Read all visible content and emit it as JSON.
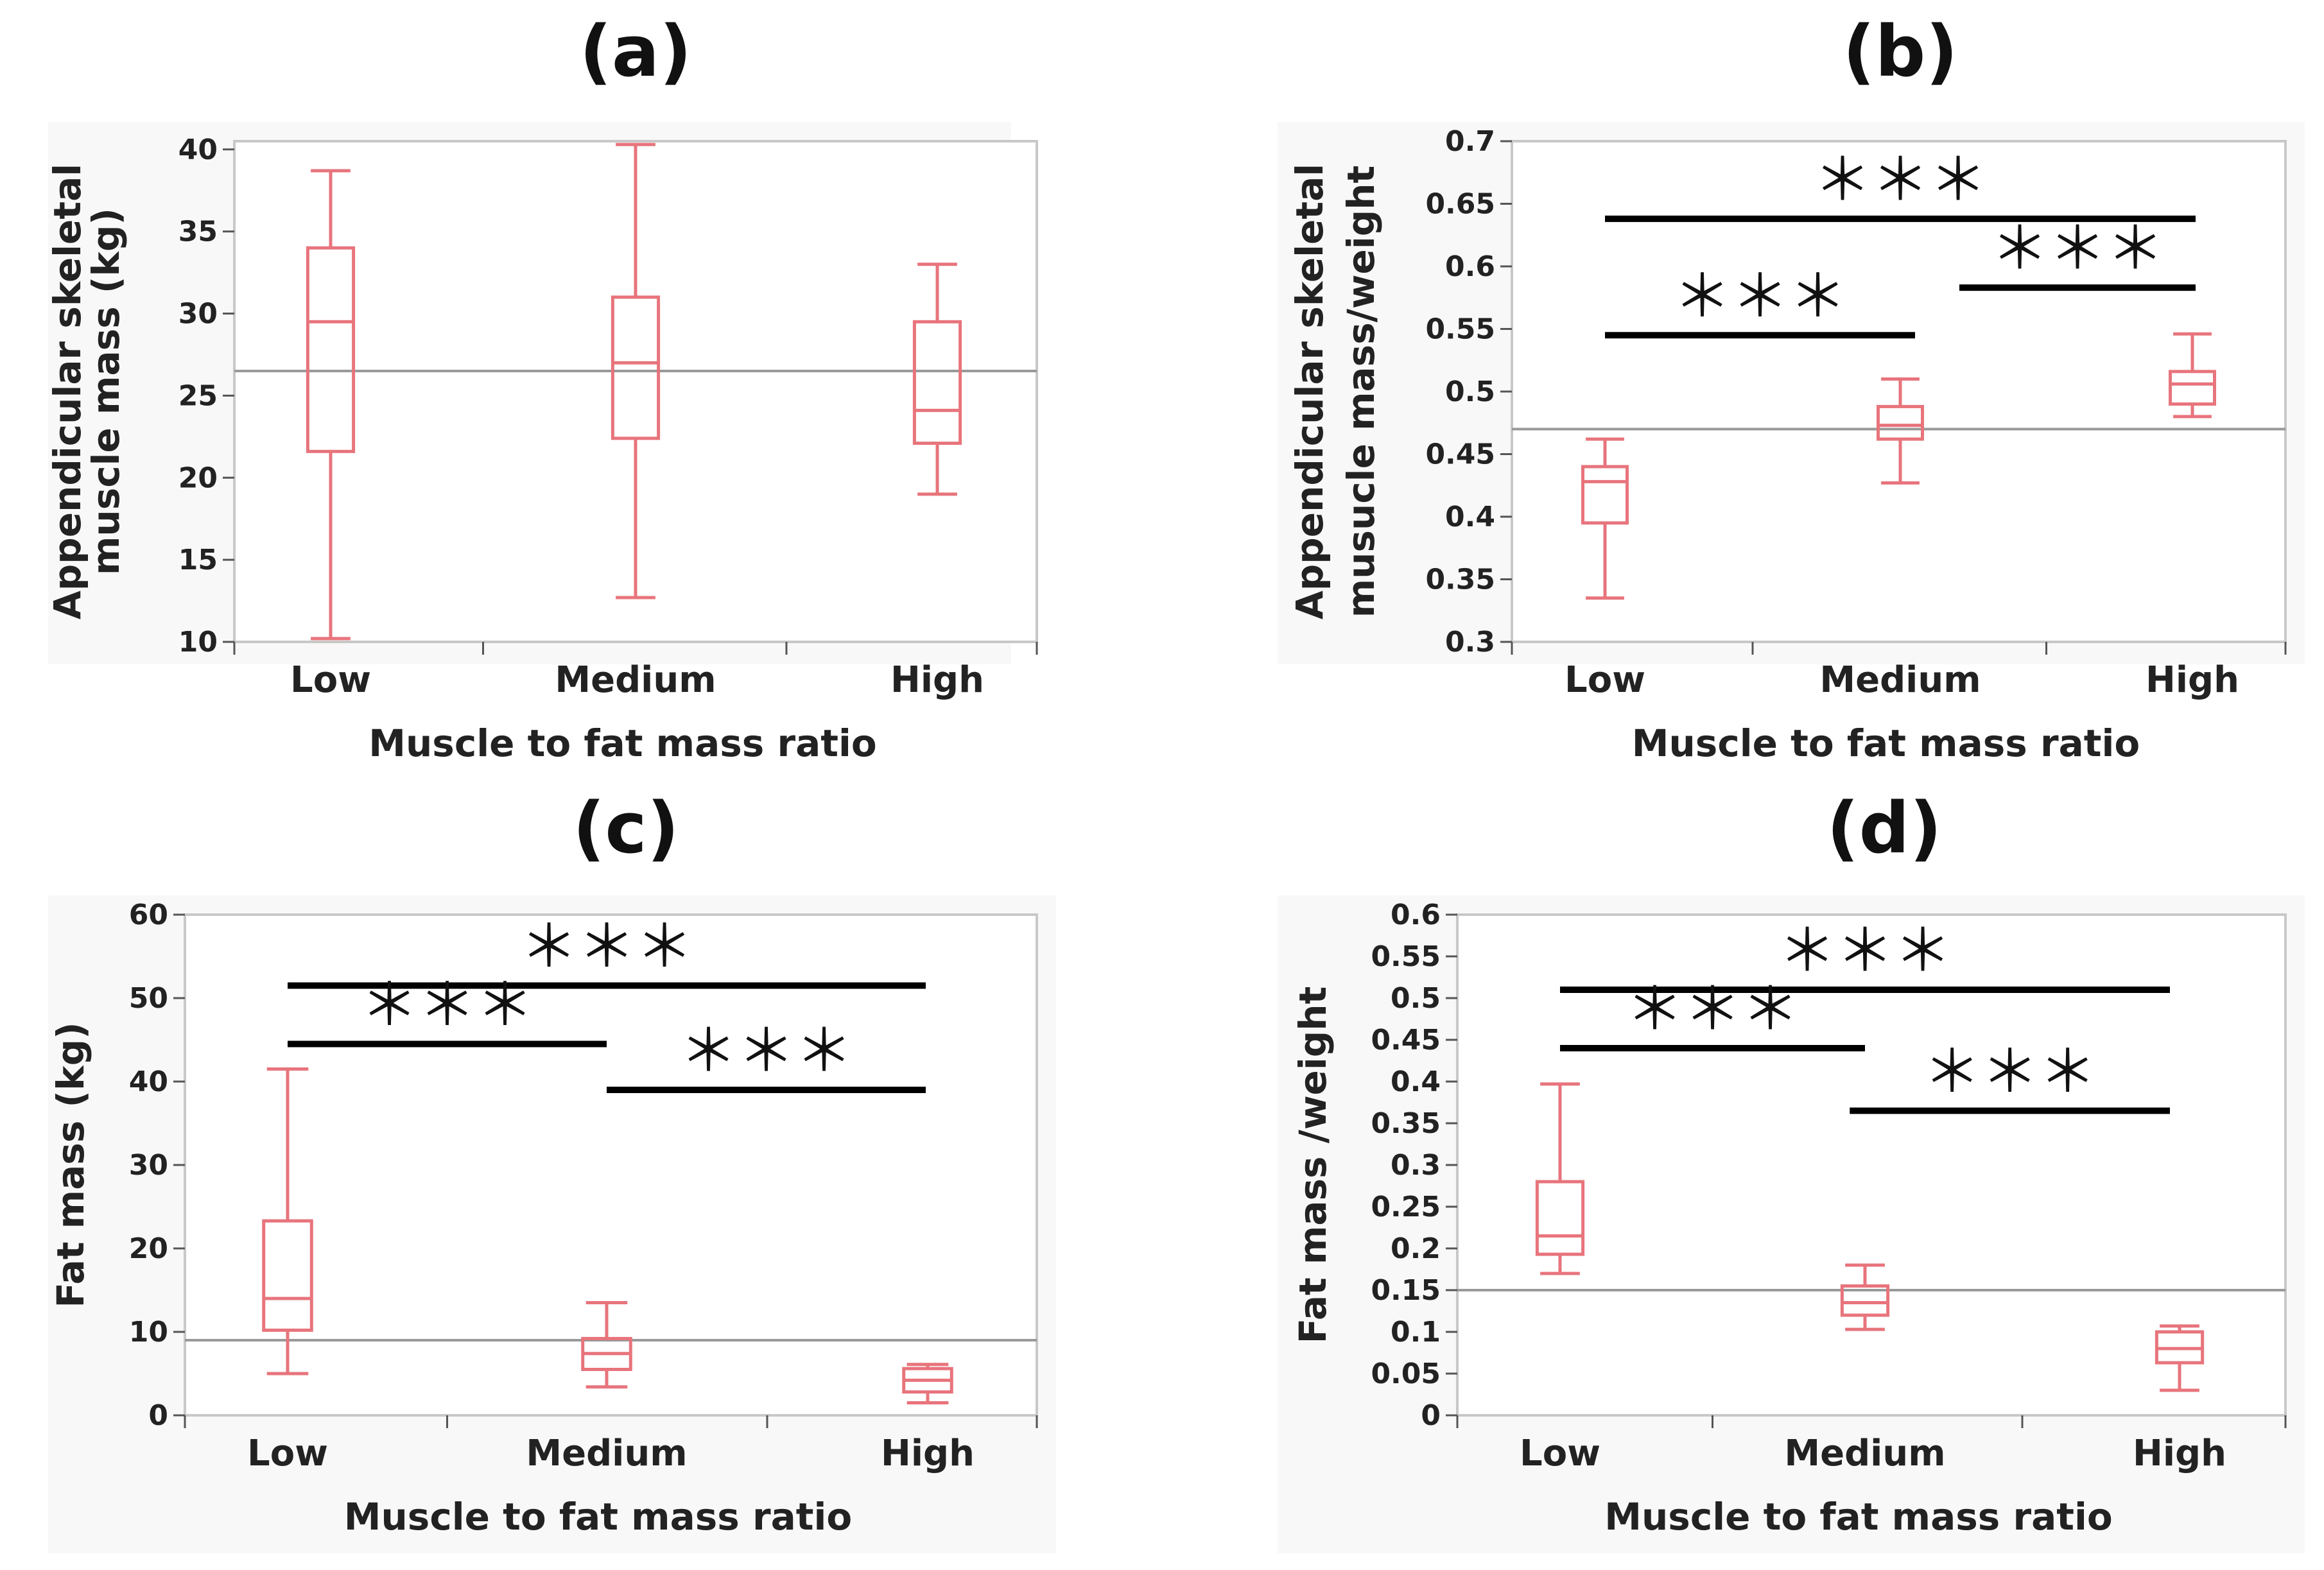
{
  "chart_data": [
    {
      "type": "box",
      "panel_label": "(a)",
      "xlabel": "Muscle to fat mass ratio",
      "ylabel_lines": [
        "Appendicular skeletal",
        "muscle mass (kg)"
      ],
      "categories": [
        "Low",
        "Medium",
        "High"
      ],
      "ylim": [
        10,
        40.5
      ],
      "yticks": [
        10,
        15,
        20,
        25,
        30,
        35,
        40
      ],
      "tick_labels": [
        "10",
        "15",
        "20",
        "25",
        "30",
        "35",
        "40"
      ],
      "reference_line": 26.5,
      "boxes": [
        {
          "category": "Low",
          "min": 10.2,
          "q1": 21.6,
          "median": 29.5,
          "q3": 34.0,
          "max": 38.7
        },
        {
          "category": "Medium",
          "min": 12.7,
          "q1": 22.4,
          "median": 27.0,
          "q3": 31.0,
          "max": 40.3
        },
        {
          "category": "High",
          "min": 19.0,
          "q1": 22.1,
          "median": 24.1,
          "q3": 29.5,
          "max": 33.0
        }
      ],
      "significance": []
    },
    {
      "type": "box",
      "panel_label": "(b)",
      "xlabel": "Muscle to fat mass ratio",
      "ylabel_lines": [
        "Appendicular skeletal",
        "musucle mass/weight"
      ],
      "categories": [
        "Low",
        "Medium",
        "High"
      ],
      "ylim": [
        0.3,
        0.7
      ],
      "yticks": [
        0.3,
        0.35,
        0.4,
        0.45,
        0.5,
        0.55,
        0.6,
        0.65,
        0.7
      ],
      "tick_labels": [
        "0.3",
        "0.35",
        "0.4",
        "0.45",
        "0.5",
        "0.55",
        "0.6",
        "0.65",
        "0.7"
      ],
      "reference_line": 0.47,
      "boxes": [
        {
          "category": "Low",
          "min": 0.335,
          "q1": 0.395,
          "median": 0.428,
          "q3": 0.44,
          "max": 0.462
        },
        {
          "category": "Medium",
          "min": 0.427,
          "q1": 0.462,
          "median": 0.473,
          "q3": 0.488,
          "max": 0.51
        },
        {
          "category": "High",
          "min": 0.48,
          "q1": 0.49,
          "median": 0.506,
          "q3": 0.516,
          "max": 0.546
        }
      ],
      "significance": [
        {
          "label": "＊＊＊",
          "from": 0,
          "to": 2,
          "y": 0.638
        },
        {
          "label": "＊＊＊",
          "from": 1.2,
          "to": 2,
          "y": 0.583
        },
        {
          "label": "＊＊＊",
          "from": 0,
          "to": 1.05,
          "y": 0.545
        }
      ]
    },
    {
      "type": "box",
      "panel_label": "(c)",
      "xlabel": "Muscle to fat mass ratio",
      "ylabel_lines": [
        "Fat mass (kg)"
      ],
      "categories": [
        "Low",
        "Medium",
        "High"
      ],
      "ylim": [
        0,
        60
      ],
      "yticks": [
        0,
        10,
        20,
        30,
        40,
        50,
        60
      ],
      "tick_labels": [
        "0",
        "10",
        "20",
        "30",
        "40",
        "50",
        "60"
      ],
      "reference_line": 9.0,
      "boxes": [
        {
          "category": "Low",
          "min": 5.0,
          "q1": 10.2,
          "median": 14.0,
          "q3": 23.3,
          "max": 41.5
        },
        {
          "category": "Medium",
          "min": 3.4,
          "q1": 5.5,
          "median": 7.4,
          "q3": 9.2,
          "max": 13.5
        },
        {
          "category": "High",
          "min": 1.5,
          "q1": 2.8,
          "median": 4.2,
          "q3": 5.6,
          "max": 6.1
        }
      ],
      "significance": [
        {
          "label": "＊＊＊",
          "from": 0,
          "to": 2,
          "y": 51.5
        },
        {
          "label": "＊＊＊",
          "from": 0,
          "to": 1.0,
          "y": 44.5
        },
        {
          "label": "＊＊＊",
          "from": 1.0,
          "to": 2,
          "y": 39.0
        }
      ]
    },
    {
      "type": "box",
      "panel_label": "(d)",
      "xlabel": "Muscle to fat mass ratio",
      "ylabel_lines": [
        "Fat mass /weight"
      ],
      "categories": [
        "Low",
        "Medium",
        "High"
      ],
      "ylim": [
        0,
        0.6
      ],
      "yticks": [
        0,
        0.05,
        0.1,
        0.15,
        0.2,
        0.25,
        0.3,
        0.35,
        0.4,
        0.45,
        0.5,
        0.55,
        0.6
      ],
      "tick_labels": [
        "0",
        "0.05",
        "0.1",
        "0.15",
        "0.2",
        "0.25",
        "0.3",
        "0.35",
        "0.4",
        "0.45",
        "0.5",
        "0.55",
        "0.6"
      ],
      "reference_line": 0.15,
      "boxes": [
        {
          "category": "Low",
          "min": 0.17,
          "q1": 0.193,
          "median": 0.215,
          "q3": 0.28,
          "max": 0.397
        },
        {
          "category": "Medium",
          "min": 0.103,
          "q1": 0.12,
          "median": 0.135,
          "q3": 0.155,
          "max": 0.18
        },
        {
          "category": "High",
          "min": 0.03,
          "q1": 0.063,
          "median": 0.08,
          "q3": 0.1,
          "max": 0.107
        }
      ],
      "significance": [
        {
          "label": "＊＊＊",
          "from": 0,
          "to": 2,
          "y": 0.51
        },
        {
          "label": "＊＊＊",
          "from": 0,
          "to": 1.0,
          "y": 0.44
        },
        {
          "label": "＊＊＊",
          "from": 0.95,
          "to": 2,
          "y": 0.365
        }
      ]
    }
  ],
  "colors": {
    "box": "#e8747c",
    "panel_bg": "#f8f8f8",
    "plot_bg": "#ffffff",
    "frame": "#c8c8c8",
    "reference": "#999999",
    "sig_line": "#000000"
  }
}
